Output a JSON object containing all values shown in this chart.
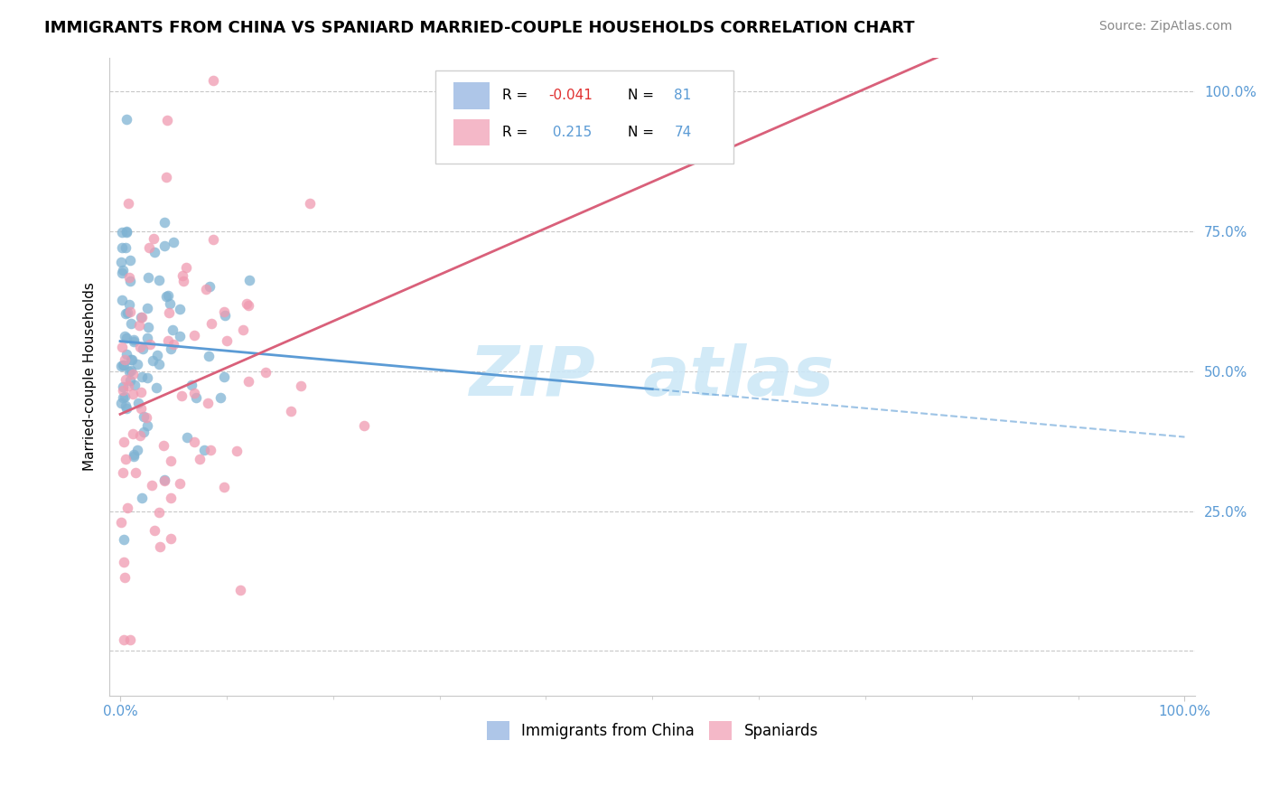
{
  "title": "IMMIGRANTS FROM CHINA VS SPANIARD MARRIED-COUPLE HOUSEHOLDS CORRELATION CHART",
  "source": "Source: ZipAtlas.com",
  "ylabel": "Married-couple Households",
  "R_china": -0.041,
  "N_china": 81,
  "R_spain": 0.215,
  "N_spain": 74,
  "series1_color": "#7fb3d3",
  "series2_color": "#f09ab0",
  "trend1_color": "#5b9bd5",
  "trend2_color": "#d9607a",
  "legend_box1_color": "#aec6e8",
  "legend_box2_color": "#f4b8c8",
  "axis_tick_color": "#5b9bd5",
  "grid_color": "#c8c8c8",
  "title_fontsize": 13,
  "source_fontsize": 10,
  "tick_fontsize": 11,
  "ylabel_fontsize": 11,
  "legend_fontsize": 12,
  "watermark_fontsize": 55,
  "watermark_color": "#cde8f7",
  "background_color": "#ffffff",
  "xlim": [
    -0.01,
    1.01
  ],
  "ylim": [
    -0.08,
    1.06
  ],
  "ytick_positions": [
    0.0,
    0.25,
    0.5,
    0.75,
    1.0
  ],
  "ytick_labels": [
    "",
    "25.0%",
    "50.0%",
    "75.0%",
    "100.0%"
  ],
  "xtick_label_left": "0.0%",
  "xtick_label_right": "100.0%",
  "bottom_legend_labels": [
    "Immigrants from China",
    "Spaniards"
  ],
  "trend1_solid_end": 0.5,
  "trend1_dash_start": 0.5,
  "trend1_dash_end": 1.0
}
